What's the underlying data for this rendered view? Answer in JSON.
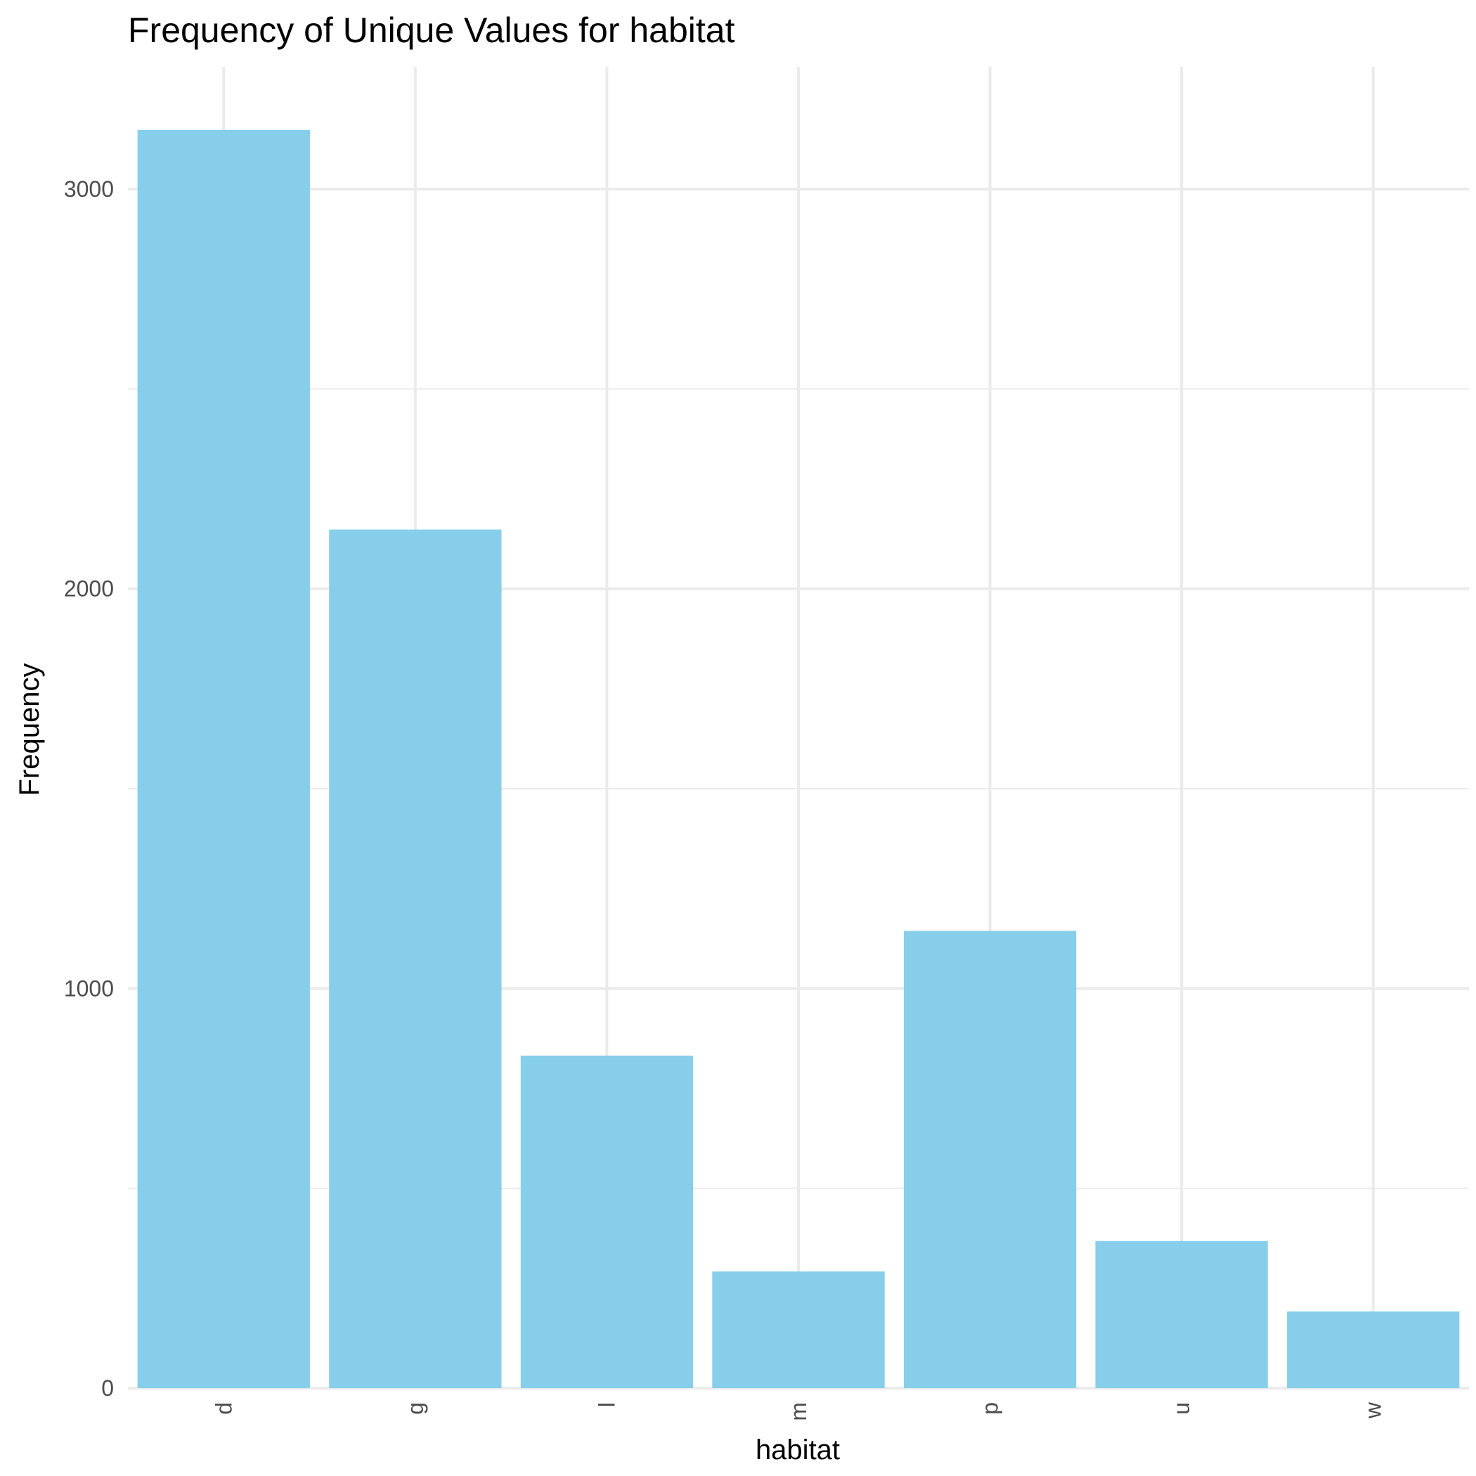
{
  "chart_data": {
    "type": "bar",
    "title": "Frequency of Unique Values for habitat",
    "xlabel": "habitat",
    "ylabel": "Frequency",
    "categories": [
      "d",
      "g",
      "l",
      "m",
      "p",
      "u",
      "w"
    ],
    "values": [
      3148,
      2148,
      832,
      292,
      1144,
      368,
      192
    ],
    "ylim": [
      0,
      3306
    ],
    "yticks": [
      0,
      1000,
      2000,
      3000
    ],
    "ytick_labels": [
      "0",
      "1000",
      "2000",
      "3000"
    ],
    "grid": true,
    "legend": "none",
    "bar_color": "#87ceeb",
    "x_tick_rotation": 90
  }
}
